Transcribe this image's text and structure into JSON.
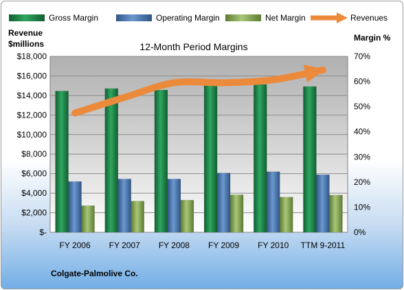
{
  "chart_data": {
    "type": "bar",
    "title": "12-Month Period Margins",
    "company": "Colgate-Palmolive Co.",
    "left_axis": {
      "label_line1": "Revenue",
      "label_line2": "$millions",
      "ticks": [
        "$-",
        "$2,000",
        "$4,000",
        "$6,000",
        "$8,000",
        "$10,000",
        "$12,000",
        "$14,000",
        "$16,000",
        "$18,000"
      ],
      "ylim": [
        0,
        18000
      ]
    },
    "right_axis": {
      "label": "Margin %",
      "ticks": [
        "0%",
        "10%",
        "20%",
        "30%",
        "40%",
        "50%",
        "60%",
        "70%"
      ],
      "ylim": [
        0,
        70
      ]
    },
    "categories": [
      "FY 2006",
      "FY 2007",
      "FY 2008",
      "FY 2009",
      "FY 2010",
      "TTM 9-2011"
    ],
    "series": [
      {
        "name": "Gross Margin",
        "kind": "bar",
        "axis": "right",
        "color": "#1e8a4b",
        "values": [
          56.2,
          57.2,
          56.6,
          58.9,
          58.8,
          58.0
        ]
      },
      {
        "name": "Operating Margin",
        "kind": "bar",
        "axis": "right",
        "color": "#4f81bd",
        "values": [
          20.2,
          21.2,
          21.2,
          23.6,
          24.1,
          22.9
        ]
      },
      {
        "name": "Net Margin",
        "kind": "bar",
        "axis": "right",
        "color": "#8fb25a",
        "values": [
          10.6,
          12.4,
          12.8,
          14.9,
          14.0,
          14.8
        ]
      },
      {
        "name": "Revenues",
        "kind": "line",
        "axis": "left",
        "color": "#ec8a3c",
        "values": [
          12200,
          13800,
          15300,
          15300,
          15600,
          16600
        ]
      }
    ],
    "legend_position": "top",
    "grid": true
  }
}
